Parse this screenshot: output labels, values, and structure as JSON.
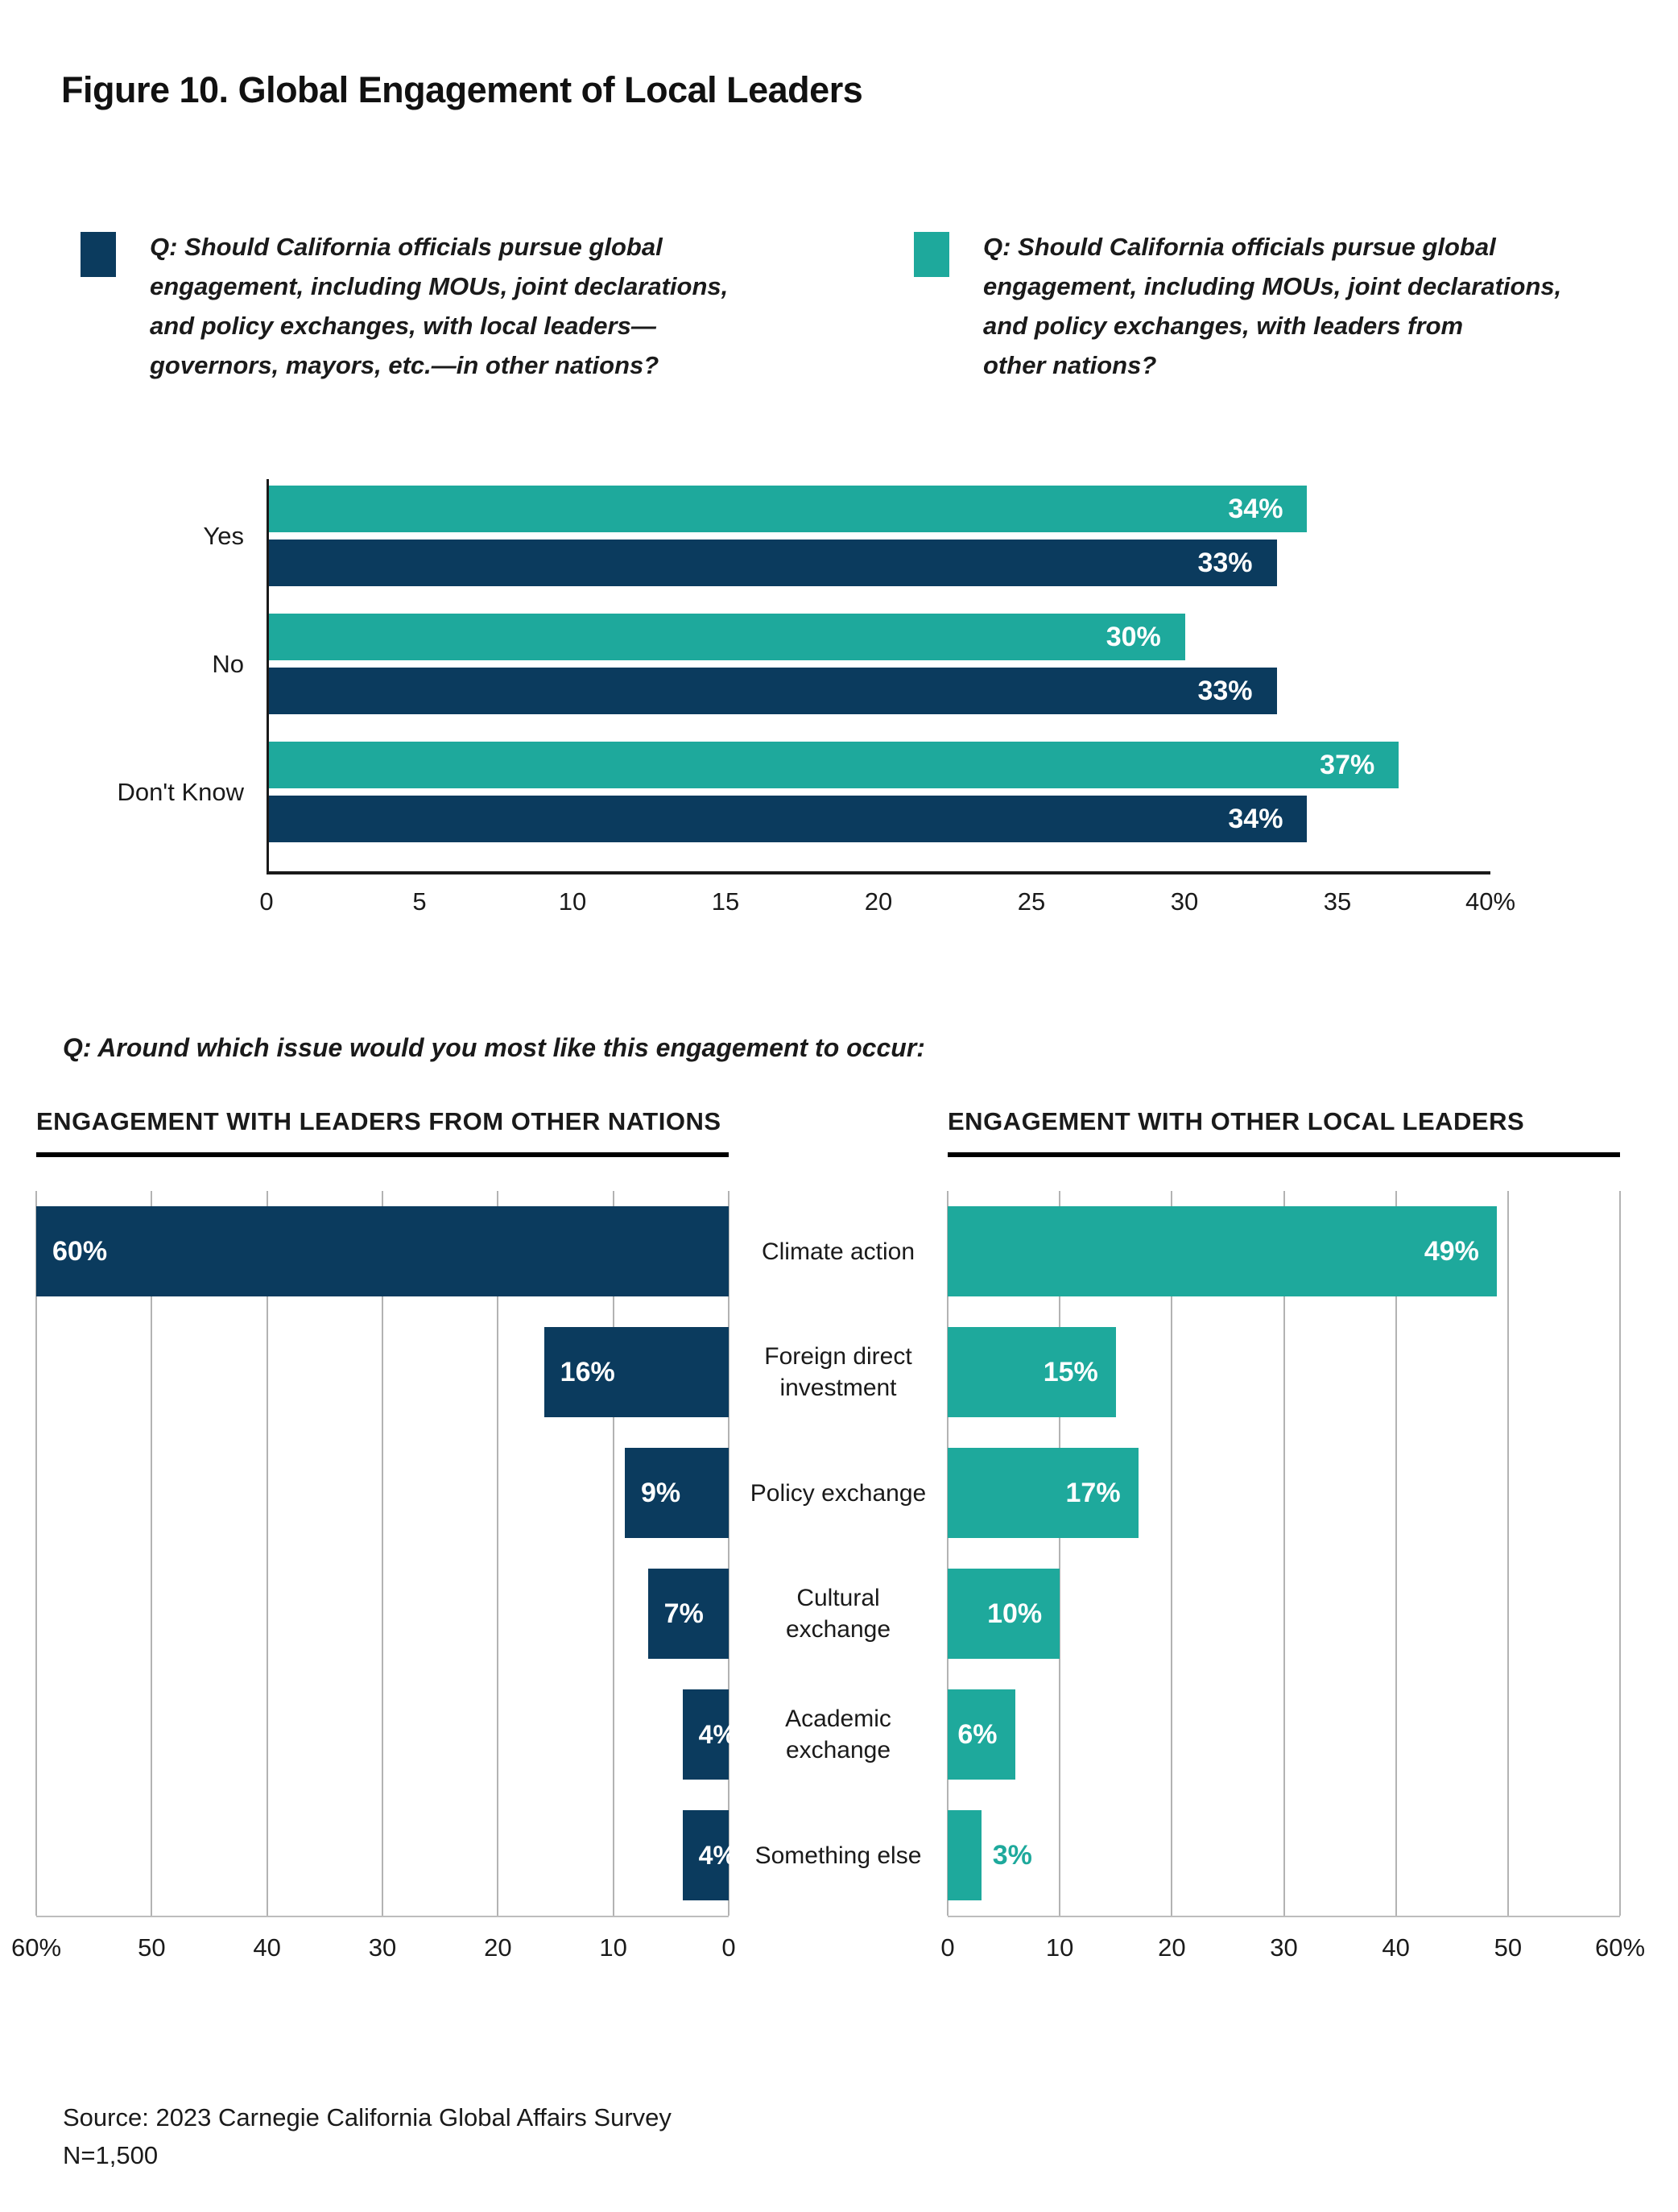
{
  "figure": {
    "title": "Figure 10. Global Engagement of Local Leaders",
    "question2": "Q: Around which issue would you most like this engagement to occur:",
    "source_line1": "Source: 2023 Carnegie California Global Affairs Survey",
    "source_line2": "N=1,500"
  },
  "colors": {
    "navy": "#0B3B5E",
    "teal": "#1EA99C",
    "grid": "#B3B3B3",
    "axis": "#1A1A1A",
    "text": "#1A1A1A"
  },
  "legend": [
    {
      "color": "#0B3B5E",
      "label": "Q: Should California officials pursue global\nengagement, including MOUs, joint declarations,\nand policy exchanges, with local leaders—\ngovernors, mayors, etc.—in other nations?"
    },
    {
      "color": "#1EA99C",
      "label": "Q: Should California officials pursue global\nengagement, including MOUs, joint declarations,\nand policy exchanges, with leaders from\nother nations?"
    }
  ],
  "chart_data": [
    {
      "id": "should-officials-pursue-engagement",
      "type": "bar",
      "orientation": "horizontal-grouped",
      "categories": [
        "Yes",
        "No",
        "Don't Know"
      ],
      "series": [
        {
          "name": "with leaders from other nations (teal)",
          "color": "#1EA99C",
          "values": [
            34,
            30,
            37
          ],
          "value_labels": [
            "34%",
            "30%",
            "37%"
          ]
        },
        {
          "name": "with local leaders in other nations (navy)",
          "color": "#0B3B5E",
          "values": [
            33,
            33,
            34
          ],
          "value_labels": [
            "33%",
            "33%",
            "34%"
          ]
        }
      ],
      "xlim": [
        0,
        40
      ],
      "tick_labels": [
        "0",
        "5",
        "10",
        "15",
        "20",
        "25",
        "30",
        "35",
        "40%"
      ],
      "grid": false,
      "legend_position": "top"
    },
    {
      "id": "engagement-with-leaders-from-other-nations",
      "type": "bar",
      "orientation": "horizontal-reversed",
      "title": "ENGAGEMENT WITH LEADERS FROM OTHER NATIONS",
      "color": "#0B3B5E",
      "categories": [
        "Climate action",
        "Foreign direct investment",
        "Policy exchange",
        "Cultural exchange",
        "Academic exchange",
        "Something else"
      ],
      "values": [
        60,
        16,
        9,
        7,
        4,
        4
      ],
      "value_labels": [
        "60%",
        "16%",
        "9%",
        "7%",
        "4%",
        "4%"
      ],
      "xlim": [
        0,
        60
      ],
      "tick_labels": [
        "60%",
        "50",
        "40",
        "30",
        "20",
        "10",
        "0"
      ],
      "grid": true,
      "gridline_step": 10
    },
    {
      "id": "engagement-with-other-local-leaders",
      "type": "bar",
      "orientation": "horizontal",
      "title": "ENGAGEMENT WITH OTHER LOCAL LEADERS",
      "color": "#1EA99C",
      "categories": [
        "Climate action",
        "Foreign direct investment",
        "Policy exchange",
        "Cultural exchange",
        "Academic exchange",
        "Something else"
      ],
      "values": [
        49,
        15,
        17,
        10,
        6,
        3
      ],
      "value_labels": [
        "49%",
        "15%",
        "17%",
        "10%",
        "6%",
        "3%"
      ],
      "xlim": [
        0,
        60
      ],
      "tick_labels": [
        "0",
        "10",
        "20",
        "30",
        "40",
        "50",
        "60%"
      ],
      "grid": true,
      "gridline_step": 10
    }
  ]
}
